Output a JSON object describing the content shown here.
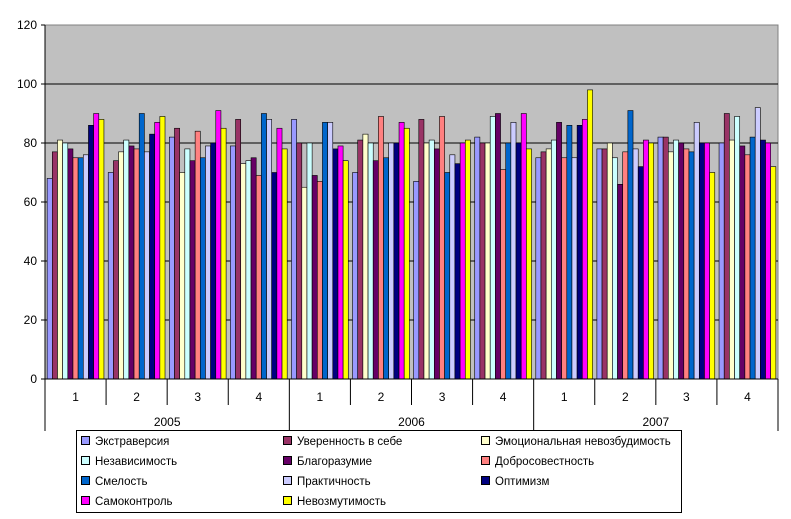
{
  "chart_data": {
    "type": "bar",
    "ylim": [
      0,
      120
    ],
    "yticks": [
      "0",
      "20",
      "40",
      "60",
      "80",
      "100",
      "120"
    ],
    "years": [
      {
        "label": "2005",
        "quarters": [
          "1",
          "2",
          "3",
          "4"
        ]
      },
      {
        "label": "2006",
        "quarters": [
          "1",
          "2",
          "3",
          "4"
        ]
      },
      {
        "label": "2007",
        "quarters": [
          "1",
          "2",
          "3",
          "4"
        ]
      }
    ],
    "series": [
      {
        "name": "Экстраверсия",
        "color": "#9999FF",
        "values": [
          68,
          70,
          82,
          79,
          88,
          70,
          67,
          82,
          75,
          78,
          82,
          80
        ]
      },
      {
        "name": "Уверенность в себе",
        "color": "#993366",
        "values": [
          77,
          74,
          85,
          88,
          80,
          81,
          88,
          80,
          77,
          78,
          82,
          90
        ]
      },
      {
        "name": "Эмоциональная невозбудимость",
        "color": "#FFFFCC",
        "values": [
          81,
          77,
          70,
          73,
          65,
          83,
          80,
          80,
          78,
          80,
          77,
          81
        ]
      },
      {
        "name": "Независимость",
        "color": "#CCFFFF",
        "values": [
          80,
          81,
          78,
          74,
          80,
          80,
          81,
          89,
          81,
          75,
          81,
          89
        ]
      },
      {
        "name": "Благоразумие",
        "color": "#660066",
        "values": [
          78,
          79,
          74,
          75,
          69,
          74,
          78,
          90,
          87,
          66,
          80,
          79
        ]
      },
      {
        "name": "Добросовестность",
        "color": "#FF8080",
        "values": [
          75,
          78,
          84,
          69,
          67,
          89,
          89,
          71,
          75,
          77,
          78,
          76
        ]
      },
      {
        "name": "Смелость",
        "color": "#0066CC",
        "values": [
          75,
          90,
          75,
          90,
          87,
          75,
          70,
          80,
          86,
          91,
          77,
          82
        ]
      },
      {
        "name": "Практичность",
        "color": "#CCCCFF",
        "values": [
          76,
          77,
          79,
          88,
          87,
          80,
          76,
          87,
          75,
          78,
          87,
          92
        ]
      },
      {
        "name": "Оптимизм",
        "color": "#000080",
        "values": [
          86,
          83,
          80,
          70,
          78,
          80,
          73,
          80,
          86,
          72,
          80,
          81
        ]
      },
      {
        "name": "Самоконтроль",
        "color": "#FF00FF",
        "values": [
          90,
          87,
          91,
          85,
          79,
          87,
          80,
          90,
          88,
          81,
          80,
          80
        ]
      },
      {
        "name": "Невозмутимость",
        "color": "#FFFF00",
        "values": [
          88,
          89,
          85,
          78,
          74,
          85,
          81,
          78,
          98,
          80,
          70,
          72
        ]
      }
    ]
  }
}
